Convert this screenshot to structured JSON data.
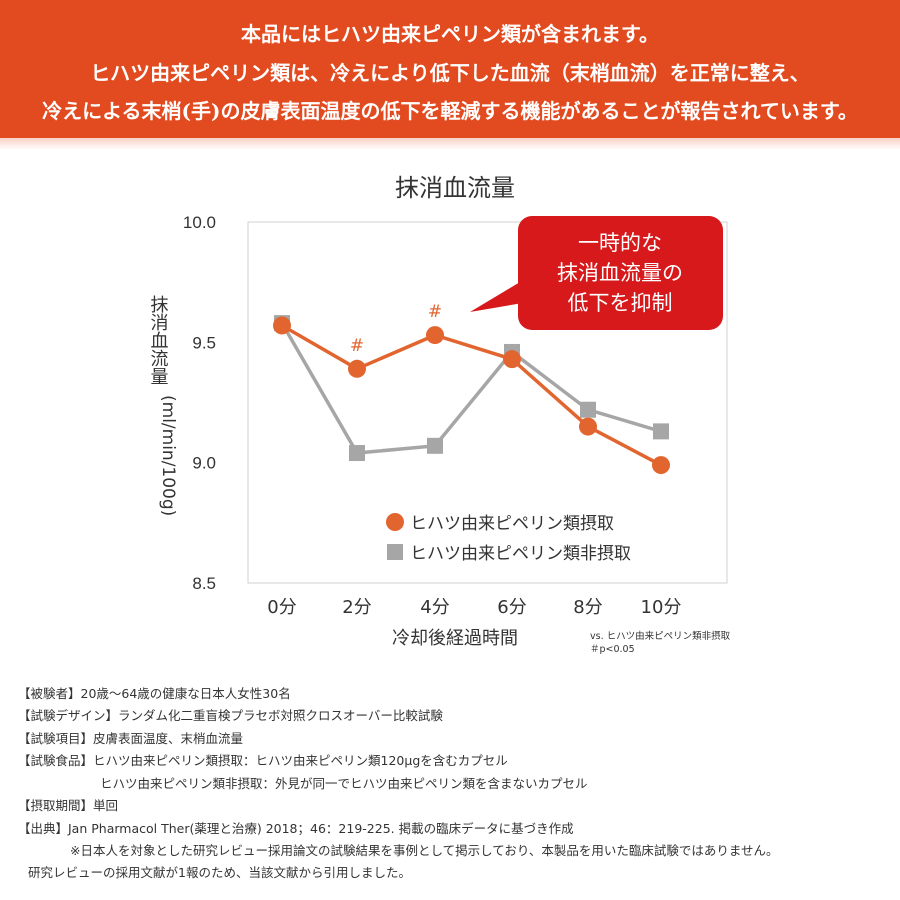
{
  "header": {
    "lines": [
      "本品にはヒハツ由来ピペリン類が含まれます。",
      "ヒハツ由来ピペリン類は、冷えにより低下した血流（末梢血流）を正常に整え、",
      "冷えによる末梢(手)の皮膚表面温度の低下を軽減する機能があることが報告されています。"
    ]
  },
  "callout": {
    "lines": [
      "一時的な",
      "抹消血流量の",
      "低下を抑制"
    ],
    "color": "#d7191c"
  },
  "notes": {
    "vs": "vs. ヒハツ由来ピペリン類非摂取",
    "p": "＃p<0.05"
  },
  "chart_data": {
    "type": "line",
    "title": "抹消血流量",
    "xlabel": "冷却後経過時間",
    "ylabel": "抹消血流量 (ml/min/100g)",
    "ylabel_main": "抹消血流量",
    "ylabel_unit": "(ml/min/100g)",
    "categories": [
      "0分",
      "2分",
      "4分",
      "6分",
      "8分",
      "10分"
    ],
    "ylim": [
      8.5,
      10.0
    ],
    "yticks": [
      "8.5",
      "9.0",
      "9.5",
      "10.0"
    ],
    "grid": false,
    "legend_placement": "bottom-right",
    "series": [
      {
        "name": "ヒハツ由来ピペリン類摂取",
        "marker": "circle",
        "color": "#e2652f",
        "values": [
          9.57,
          9.39,
          9.53,
          9.43,
          9.15,
          8.99
        ],
        "annotations": [
          "",
          "#",
          "#",
          "",
          "",
          ""
        ]
      },
      {
        "name": "ヒハツ由来ピペリン類非摂取",
        "marker": "square",
        "color": "#a6a6a6",
        "values": [
          9.58,
          9.04,
          9.07,
          9.46,
          9.22,
          9.13
        ]
      }
    ]
  },
  "footer": [
    "【被験者】20歳〜64歳の健康な日本人女性30名",
    "【試験デザイン】ランダム化二重盲検プラセボ対照クロスオーバー比較試験",
    "【試験項目】皮膚表面温度、末梢血流量",
    "【試験食品】ヒハツ由来ピペリン類摂取：ヒハツ由来ピペリン類120μgを含むカプセル",
    "ヒハツ由来ピペリン類非摂取：外見が同一でヒハツ由来ピペリン類を含まないカプセル",
    "【摂取期間】単回",
    "【出典】Jan Pharmacol Ther(薬理と治療)  2018；46：219-225. 掲載の臨床データに基づき作成",
    "※日本人を対象とした研究レビュー採用論文の試験結果を事例として掲示しており、本製品を用いた臨床試験ではありません。",
    "研究レビューの採用文献が1報のため、当該文献から引用しました。"
  ]
}
